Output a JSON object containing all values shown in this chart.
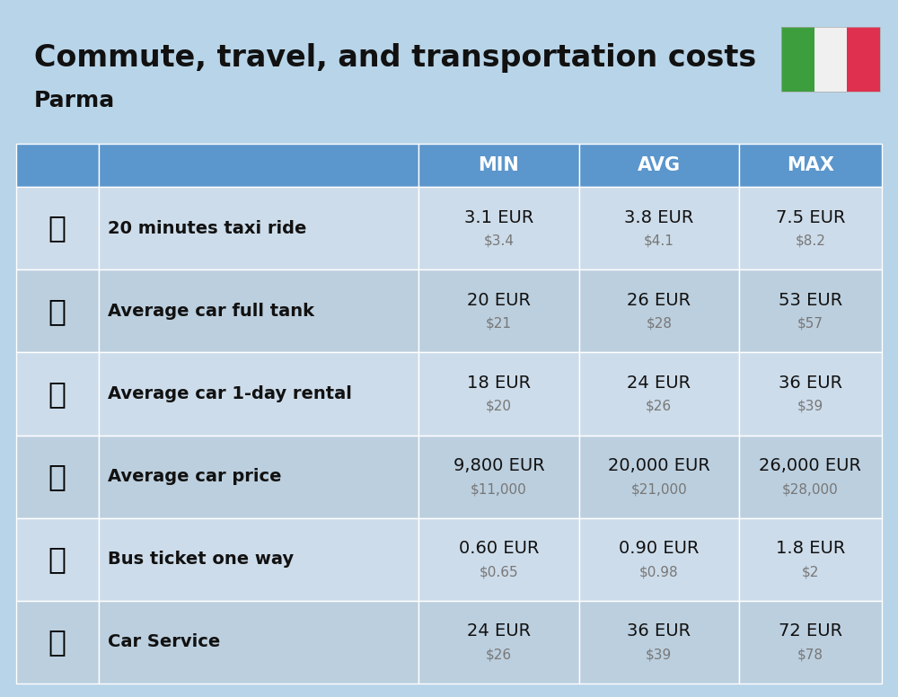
{
  "title": "Commute, travel, and transportation costs",
  "subtitle": "Parma",
  "background_color": "#b8d4e8",
  "header_bg_color": "#5b96cc",
  "header_text_color": "#ffffff",
  "row_bg_odd": "#cddcea",
  "row_bg_even": "#bccfde",
  "sep_color": "#ffffff",
  "headers": [
    "",
    "",
    "MIN",
    "AVG",
    "MAX"
  ],
  "rows": [
    {
      "label": "20 minutes taxi ride",
      "emoji": "🚕",
      "min_eur": "3.1 EUR",
      "min_usd": "$3.4",
      "avg_eur": "3.8 EUR",
      "avg_usd": "$4.1",
      "max_eur": "7.5 EUR",
      "max_usd": "$8.2"
    },
    {
      "label": "Average car full tank",
      "emoji": "⛽",
      "min_eur": "20 EUR",
      "min_usd": "$21",
      "avg_eur": "26 EUR",
      "avg_usd": "$28",
      "max_eur": "53 EUR",
      "max_usd": "$57"
    },
    {
      "label": "Average car 1-day rental",
      "emoji": "🚙",
      "min_eur": "18 EUR",
      "min_usd": "$20",
      "avg_eur": "24 EUR",
      "avg_usd": "$26",
      "max_eur": "36 EUR",
      "max_usd": "$39"
    },
    {
      "label": "Average car price",
      "emoji": "🚗",
      "min_eur": "9,800 EUR",
      "min_usd": "$11,000",
      "avg_eur": "20,000 EUR",
      "avg_usd": "$21,000",
      "max_eur": "26,000 EUR",
      "max_usd": "$28,000"
    },
    {
      "label": "Bus ticket one way",
      "emoji": "🚌",
      "min_eur": "0.60 EUR",
      "min_usd": "$0.65",
      "avg_eur": "0.90 EUR",
      "avg_usd": "$0.98",
      "max_eur": "1.8 EUR",
      "max_usd": "$2"
    },
    {
      "label": "Car Service",
      "emoji": "🔧",
      "min_eur": "24 EUR",
      "min_usd": "$26",
      "avg_eur": "36 EUR",
      "avg_usd": "$39",
      "max_eur": "72 EUR",
      "max_usd": "$78"
    }
  ],
  "flag_colors": [
    "#3d9e3d",
    "#f0f0f0",
    "#e03050"
  ],
  "title_fontsize": 24,
  "subtitle_fontsize": 18,
  "header_fontsize": 15,
  "label_fontsize": 14,
  "value_fontsize": 14,
  "usd_fontsize": 11,
  "emoji_fontsize": 24
}
